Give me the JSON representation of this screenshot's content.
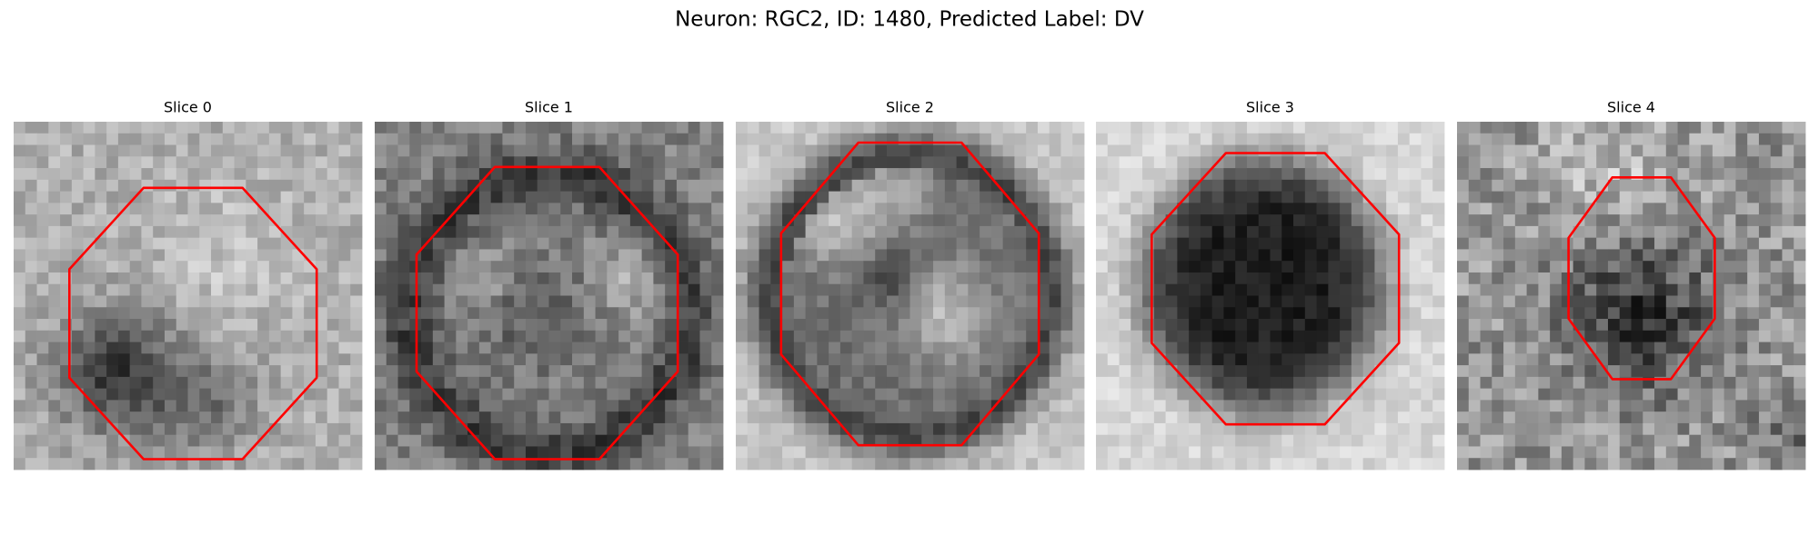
{
  "title": "Neuron: RGC2, ID: 1480, Predicted Label: DV",
  "panels": [
    {
      "title": "Slice 0"
    },
    {
      "title": "Slice 1"
    },
    {
      "title": "Slice 2"
    },
    {
      "title": "Slice 3"
    },
    {
      "title": "Slice 4"
    }
  ]
}
